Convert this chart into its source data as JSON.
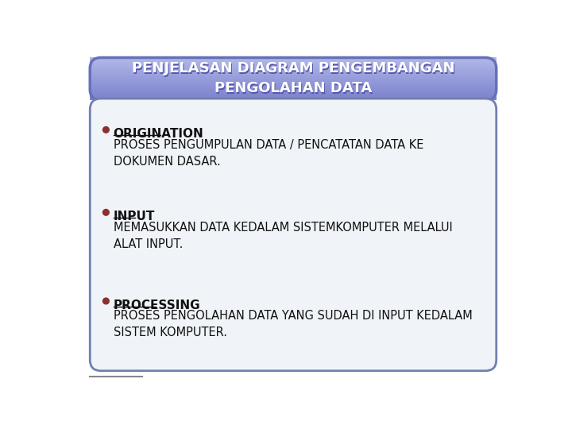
{
  "title_line1": "PENJELASAN DIAGRAM PENGEMBANGAN",
  "title_line2": "PENGOLAHAN DATA",
  "title_text_color": "#ffffff",
  "title_text_shadow": "#5555aa",
  "body_bg_color": "#f0f4f8",
  "body_border_color": "#7080b0",
  "outer_bg_color": "#ffffff",
  "bullet_color": "#8b3030",
  "sections": [
    {
      "label": "ORIGINATION",
      "text": "PROSES PENGUMPULAN DATA / PENCATATAN DATA KE\nDOKUMEN DASAR."
    },
    {
      "label": "INPUT",
      "text": "MEMASUKKAN DATA KEDALAM SISTEMKOMPUTER MELALUI\nALAT INPUT."
    },
    {
      "label": "PROCESSING",
      "text": "PROSES PENGOLAHAN DATA YANG SUDAH DI INPUT KEDALAM\nSISTEM KOMPUTER."
    }
  ],
  "label_fontsize": 11,
  "text_fontsize": 10.5,
  "title_fontsize": 13
}
